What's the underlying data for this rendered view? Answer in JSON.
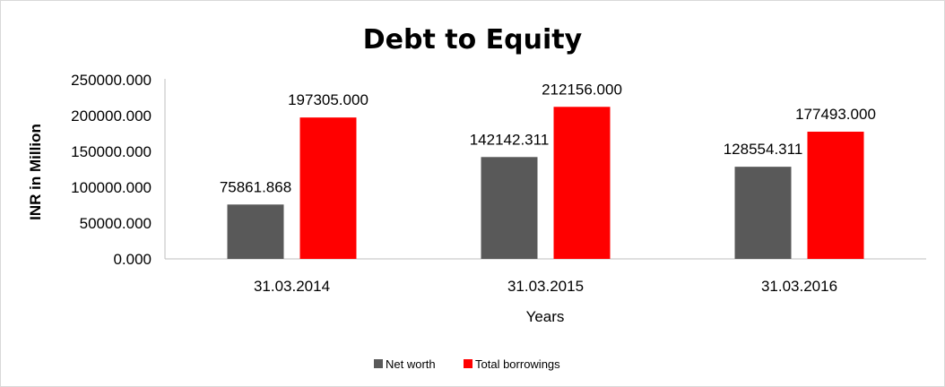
{
  "chart_data": {
    "type": "bar",
    "title": "Debt to Equity",
    "xlabel": "Years",
    "ylabel": "INR in Million",
    "categories": [
      "31.03.2014",
      "31.03.2015",
      "31.03.2016"
    ],
    "series": [
      {
        "name": "Net worth",
        "color": "#595959",
        "values": [
          75861.868,
          142142.311,
          128554.311
        ],
        "labels": [
          "75861.868",
          "142142.311",
          "128554.311"
        ]
      },
      {
        "name": "Total borrowings",
        "color": "#ff0000",
        "values": [
          197305.0,
          212156.0,
          177493.0
        ],
        "labels": [
          "197305.000",
          "212156.000",
          "177493.000"
        ]
      }
    ],
    "ylim": [
      0,
      250000
    ],
    "yticks": [
      "0.000",
      "50000.000",
      "100000.000",
      "150000.000",
      "200000.000",
      "250000.000"
    ],
    "grid": false,
    "legend_position": "bottom"
  }
}
